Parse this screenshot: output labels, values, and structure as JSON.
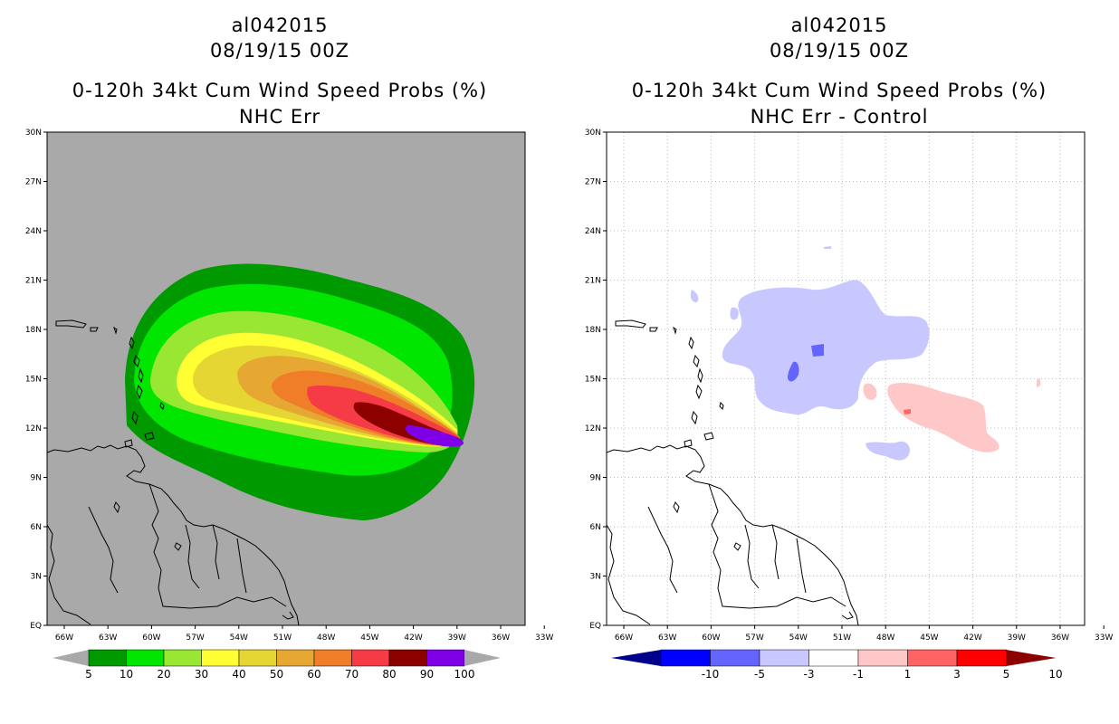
{
  "left_panel": {
    "storm_id": "al042015",
    "datetime": "08/19/15 00Z",
    "product": "0-120h 34kt Cum Wind Speed Probs (%)",
    "subtitle": "NHC Err",
    "background_color": "#a9a9a9",
    "colorbar": {
      "labels": [
        "5",
        "10",
        "20",
        "30",
        "40",
        "50",
        "60",
        "70",
        "80",
        "90",
        "100"
      ],
      "colors": [
        "#009900",
        "#00e600",
        "#99e633",
        "#ffff33",
        "#e6d633",
        "#e6a833",
        "#f07d28",
        "#f53c46",
        "#8c0000",
        "#7f00e6"
      ],
      "extension_color": "#a9a9a9"
    }
  },
  "right_panel": {
    "storm_id": "al042015",
    "datetime": "08/19/15 00Z",
    "product": "0-120h 34kt Cum Wind Speed Probs (%)",
    "subtitle": "NHC Err - Control",
    "background_color": "#ffffff",
    "colorbar": {
      "labels": [
        "-10",
        "-5",
        "-3",
        "-1",
        "1",
        "3",
        "5",
        "10"
      ],
      "colors": [
        "#000096",
        "#0000ff",
        "#6464ff",
        "#c8c8ff",
        "#ffffff",
        "#ffc8c8",
        "#ff6464",
        "#ff0000",
        "#960000"
      ],
      "low_extension_color": "#00008c",
      "high_extension_color": "#8c0000"
    }
  },
  "axes": {
    "lat_labels": [
      "30N",
      "27N",
      "24N",
      "21N",
      "18N",
      "15N",
      "12N",
      "9N",
      "6N",
      "3N",
      "EQ"
    ],
    "lon_labels": [
      "66W",
      "63W",
      "60W",
      "57W",
      "54W",
      "51W",
      "48W",
      "45W",
      "42W",
      "39W",
      "36W",
      "33W"
    ]
  }
}
